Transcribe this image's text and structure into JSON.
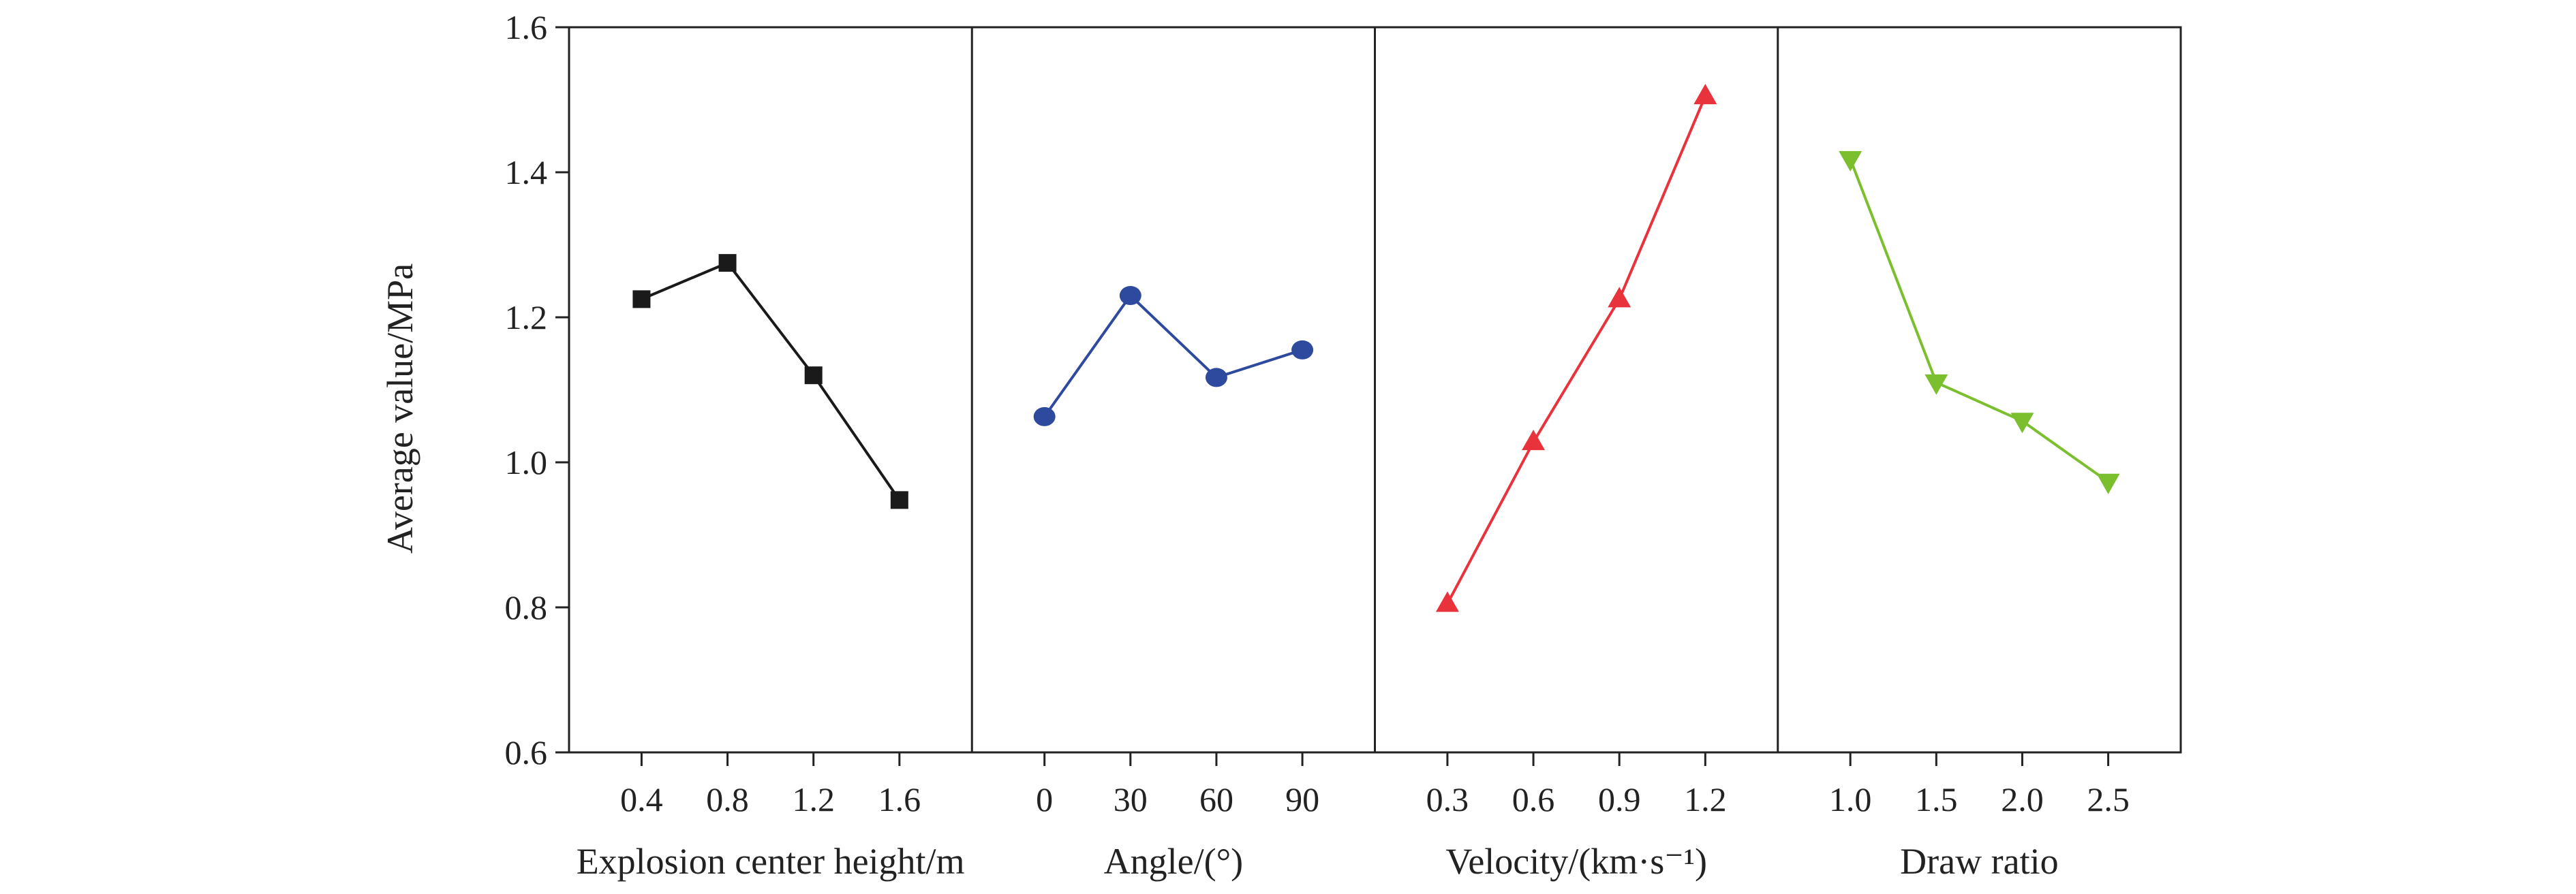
{
  "chart_data": {
    "type": "line",
    "title": "",
    "ylabel": "Average value/MPa",
    "ylim": [
      0.6,
      1.6
    ],
    "yticks": [
      "0.6",
      "0.8",
      "1.0",
      "1.2",
      "1.4",
      "1.6"
    ],
    "grid": false,
    "legend": "none",
    "panels": [
      {
        "xlabel": "Explosion center height/m",
        "categories": [
          "0.4",
          "0.8",
          "1.2",
          "1.6"
        ],
        "values": [
          1.225,
          1.275,
          1.12,
          0.948
        ],
        "marker": "square",
        "color": "#1a1a1a"
      },
      {
        "xlabel": "Angle/(°)",
        "categories": [
          "0",
          "30",
          "60",
          "90"
        ],
        "values": [
          1.063,
          1.23,
          1.117,
          1.155
        ],
        "marker": "circle",
        "color": "#2e4a9e"
      },
      {
        "xlabel": "Velocity/(km·s⁻¹)",
        "categories": [
          "0.3",
          "0.6",
          "0.9",
          "1.2"
        ],
        "values": [
          0.805,
          1.028,
          1.225,
          1.505
        ],
        "marker": "triangle-up",
        "color": "#e8323c"
      },
      {
        "xlabel": "Draw ratio",
        "categories": [
          "1.0",
          "1.5",
          "2.0",
          "2.5"
        ],
        "values": [
          1.418,
          1.11,
          1.057,
          0.973
        ],
        "marker": "triangle-down",
        "color": "#7cbf2e"
      }
    ]
  }
}
